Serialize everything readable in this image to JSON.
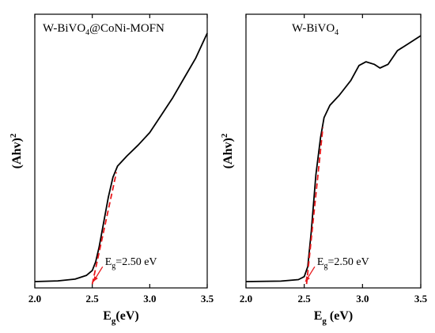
{
  "chart_data": [
    {
      "type": "line",
      "title": "W-BiVO",
      "title_sub": "4",
      "title_rest": "@CoNi-MOFN",
      "xlabel_main": "E",
      "xlabel_sub": "g",
      "xlabel_rest": "(eV)",
      "ylabel_main": "(Ahv)",
      "ylabel_sup": "2",
      "xlim": [
        2.0,
        3.5
      ],
      "ylim": [
        0,
        1
      ],
      "xticks": [
        "2.0",
        "2.5",
        "3.0",
        "3.5"
      ],
      "xtick_values": [
        2.0,
        2.5,
        3.0,
        3.5
      ],
      "series": [
        {
          "color": "#000000",
          "x": [
            2.0,
            2.2,
            2.35,
            2.45,
            2.5,
            2.53,
            2.56,
            2.6,
            2.64,
            2.68,
            2.72,
            2.8,
            2.9,
            3.0,
            3.1,
            3.2,
            3.3,
            3.4,
            3.5
          ],
          "y": [
            0.0,
            0.003,
            0.01,
            0.025,
            0.045,
            0.08,
            0.14,
            0.24,
            0.34,
            0.42,
            0.465,
            0.505,
            0.55,
            0.6,
            0.67,
            0.74,
            0.82,
            0.9,
            1.0
          ]
        }
      ],
      "fit_line": {
        "color": "#e8191c",
        "x": [
          2.5,
          2.71
        ],
        "y": [
          -0.01,
          0.44
        ]
      },
      "arrow": {
        "color": "#e8191c",
        "from": [
          2.59,
          0.06
        ],
        "to": [
          2.51,
          0.0
        ]
      },
      "annotation": {
        "main": "E",
        "sub": "g",
        "rest": "=2.50 eV"
      }
    },
    {
      "type": "line",
      "title": "W-BiVO",
      "title_sub": "4",
      "title_rest": "",
      "xlabel_main": "E",
      "xlabel_sub": "g",
      "xlabel_rest": " (eV)",
      "ylabel_main": "(Ahv)",
      "ylabel_sup": "2",
      "xlim": [
        2.0,
        3.5
      ],
      "ylim": [
        0,
        1
      ],
      "xticks": [
        "2.0",
        "2.5",
        "3.0",
        "3.5"
      ],
      "xtick_values": [
        2.0,
        2.5,
        3.0,
        3.5
      ],
      "series": [
        {
          "color": "#000000",
          "x": [
            2.0,
            2.3,
            2.45,
            2.5,
            2.53,
            2.56,
            2.6,
            2.64,
            2.67,
            2.72,
            2.8,
            2.9,
            2.97,
            3.03,
            3.1,
            3.15,
            3.22,
            3.3,
            3.4,
            3.5
          ],
          "y": [
            0.0,
            0.002,
            0.008,
            0.02,
            0.06,
            0.2,
            0.43,
            0.58,
            0.66,
            0.71,
            0.75,
            0.81,
            0.87,
            0.885,
            0.875,
            0.86,
            0.875,
            0.93,
            0.96,
            0.99
          ]
        }
      ],
      "fit_line": {
        "color": "#e8191c",
        "x": [
          2.52,
          2.66
        ],
        "y": [
          -0.01,
          0.62
        ]
      },
      "arrow": {
        "color": "#e8191c",
        "from": [
          2.59,
          0.06
        ],
        "to": [
          2.51,
          0.0
        ]
      },
      "annotation": {
        "main": "E",
        "sub": "g",
        "rest": "=2.50 eV"
      }
    }
  ]
}
